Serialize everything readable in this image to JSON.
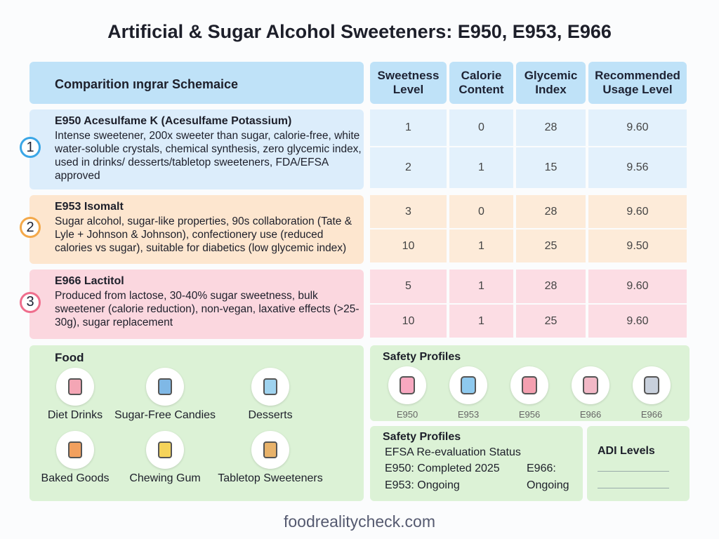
{
  "title": "Artificial & Sugar Alcohol Sweeteners: E950, E953, E966",
  "table": {
    "header": "Comparition ıngrar Schemaice",
    "columns": [
      "Sweetness Level",
      "Calorie Content",
      "Glycemic Index",
      "Recommended Usage Level"
    ],
    "groups": [
      {
        "badge": "1",
        "title": "E950 Acesulfame K (Acesulfame Potassium)",
        "description": "Intense sweetener, 200x sweeter than sugar, calorie-free, white water-soluble crystals, chemical synthesis, zero glycemic index, used in drinks/ desserts/tabletop sweeteners, FDA/EFSA approved",
        "rows": [
          [
            "1",
            "0",
            "28",
            "9.60"
          ],
          [
            "2",
            "1",
            "15",
            "9.56"
          ]
        ]
      },
      {
        "badge": "2",
        "title": "E953 Isomalt",
        "description": "Sugar alcohol, sugar-like properties, 90s collaboration (Tate & Lyle + Johnson & Johnson), confectionery use (reduced calories vs sugar), suitable for diabetics (low glycemic index)",
        "rows": [
          [
            "3",
            "0",
            "28",
            "9.60"
          ],
          [
            "10",
            "1",
            "25",
            "9.50"
          ]
        ]
      },
      {
        "badge": "3",
        "title": "E966 Lactitol",
        "description": "Produced from lactose, 30-40% sugar sweetness, bulk sweetener (calorie reduction), non-vegan, laxative effects (>25-30g), sugar replacement",
        "rows": [
          [
            "5",
            "1",
            "28",
            "9.60"
          ],
          [
            "10",
            "1",
            "25",
            "9.60"
          ]
        ]
      }
    ]
  },
  "food": {
    "title": "Food",
    "items": [
      "Diet Drinks",
      "Sugar-Free Candies",
      "Desserts",
      "Baked Goods",
      "Chewing Gum",
      "Tabletop Sweeteners"
    ]
  },
  "safety_profiles": {
    "title": "Safety Profiles",
    "items": [
      "E950",
      "E953",
      "E956",
      "E966",
      "E966"
    ]
  },
  "efsa": {
    "title": "Safety Profiles",
    "subtitle": "EFSA Re-evaluation Status",
    "entries": [
      "E950: Completed 2025",
      "E953: Ongoing",
      "E966:",
      "Ongoing"
    ]
  },
  "adi": {
    "title": "ADI Levels"
  },
  "footer": "foodrealitycheck.com"
}
